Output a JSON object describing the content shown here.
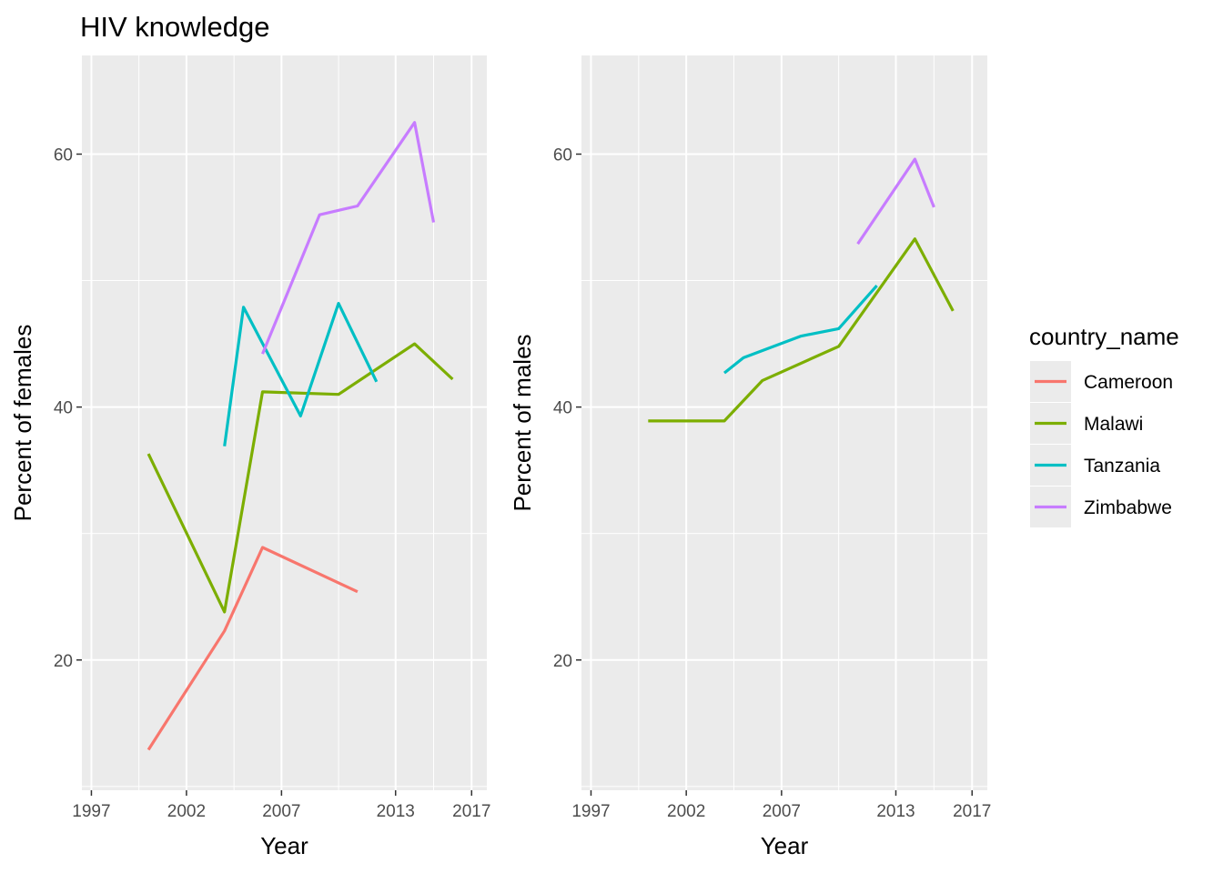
{
  "chart_data": {
    "title": "HIV knowledge",
    "legend": {
      "title": "country_name",
      "position": "right",
      "entries": [
        {
          "name": "Cameroon",
          "color": "#F8766D"
        },
        {
          "name": "Malawi",
          "color": "#7CAE00"
        },
        {
          "name": "Tanzania",
          "color": "#00BFC4"
        },
        {
          "name": "Zimbabwe",
          "color": "#C77CFF"
        }
      ]
    },
    "panels": [
      {
        "type": "line",
        "xlabel": "Year",
        "ylabel": "Percent of females",
        "xlim": [
          1996.5,
          2017.8
        ],
        "ylim": [
          9.7,
          67.8
        ],
        "xticks": [
          1997,
          2002,
          2007,
          2013,
          2017
        ],
        "yticks": [
          20,
          40,
          60
        ],
        "grid": true,
        "series": [
          {
            "name": "Cameroon",
            "x": [
              2000,
              2004,
              2006,
              2011
            ],
            "y": [
              12.9,
              22.3,
              28.9,
              25.4
            ]
          },
          {
            "name": "Malawi",
            "x": [
              2000,
              2004,
              2006,
              2010,
              2014,
              2016
            ],
            "y": [
              36.3,
              23.8,
              41.2,
              41.0,
              45.0,
              42.2
            ]
          },
          {
            "name": "Tanzania",
            "x": [
              2004,
              2005,
              2008,
              2010,
              2012
            ],
            "y": [
              36.9,
              47.9,
              39.3,
              48.2,
              42.0
            ]
          },
          {
            "name": "Zimbabwe",
            "x": [
              2006,
              2009,
              2011,
              2014,
              2015
            ],
            "y": [
              44.2,
              55.2,
              55.9,
              62.5,
              54.6
            ]
          }
        ]
      },
      {
        "type": "line",
        "xlabel": "Year",
        "ylabel": "Percent of males",
        "xlim": [
          1996.5,
          2017.8
        ],
        "ylim": [
          9.7,
          67.8
        ],
        "xticks": [
          1997,
          2002,
          2007,
          2013,
          2017
        ],
        "yticks": [
          20,
          40,
          60
        ],
        "grid": true,
        "series": [
          {
            "name": "Malawi",
            "x": [
              2000,
              2004,
              2006,
              2010,
              2014,
              2016
            ],
            "y": [
              38.9,
              38.9,
              42.1,
              44.8,
              53.3,
              47.6
            ]
          },
          {
            "name": "Tanzania",
            "x": [
              2004,
              2005,
              2008,
              2010,
              2012
            ],
            "y": [
              42.7,
              43.9,
              45.6,
              46.2,
              49.6
            ]
          },
          {
            "name": "Zimbabwe",
            "x": [
              2011,
              2014,
              2015
            ],
            "y": [
              52.9,
              59.6,
              55.8
            ]
          }
        ]
      }
    ]
  }
}
